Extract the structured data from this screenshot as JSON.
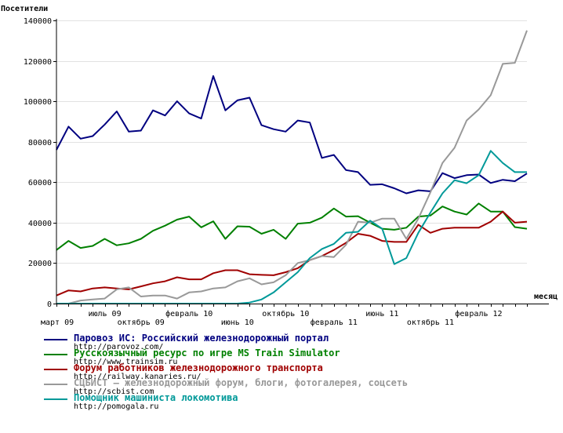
{
  "chart_data": {
    "type": "line",
    "ylabel": "Посетители",
    "xlabel": "месяц",
    "ylim": [
      0,
      140000
    ],
    "yticks": [
      0,
      20000,
      40000,
      60000,
      80000,
      100000,
      120000,
      140000
    ],
    "x_tick_labels": [
      {
        "label": "март 09",
        "index": 0,
        "row": 2
      },
      {
        "label": "июль 09",
        "index": 4,
        "row": 1
      },
      {
        "label": "октябрь 09",
        "index": 7,
        "row": 2
      },
      {
        "label": "февраль 10",
        "index": 11,
        "row": 1
      },
      {
        "label": "июнь 10",
        "index": 15,
        "row": 2
      },
      {
        "label": "октябрь 10",
        "index": 19,
        "row": 1
      },
      {
        "label": "февраль 11",
        "index": 23,
        "row": 2
      },
      {
        "label": "июнь 11",
        "index": 27,
        "row": 1
      },
      {
        "label": "октябрь 11",
        "index": 31,
        "row": 2
      },
      {
        "label": "февраль 12",
        "index": 35,
        "row": 1
      }
    ],
    "n_points": 40,
    "series": [
      {
        "name": "Паровоз ИС: Российский железнодорожный портал",
        "url": "http://parovoz.com/",
        "color": "#000080",
        "values": [
          76000,
          87500,
          81500,
          82800,
          88500,
          95000,
          85000,
          85500,
          95500,
          93000,
          100000,
          94000,
          91500,
          112500,
          95500,
          100500,
          101800,
          88200,
          86200,
          85000,
          90500,
          89500,
          72000,
          73500,
          66000,
          65000,
          58700,
          59000,
          57000,
          54500,
          56000,
          55500,
          64500,
          62000,
          63500,
          63800,
          59600,
          61200,
          60500,
          64300
        ]
      },
      {
        "name": "Русскоязычный ресурс по игре MS Train Simulator",
        "url": "http://www.trainsim.ru",
        "color": "#008000",
        "values": [
          26500,
          31000,
          27500,
          28500,
          32000,
          28800,
          29800,
          32000,
          36000,
          38500,
          41500,
          43000,
          37700,
          40700,
          32000,
          38200,
          38000,
          34500,
          36500,
          32000,
          39500,
          40000,
          42500,
          47000,
          43000,
          43200,
          40000,
          37000,
          36500,
          37500,
          43000,
          43500,
          48000,
          45500,
          44000,
          49500,
          45500,
          45500,
          37800,
          37000
        ]
      },
      {
        "name": "Форум работников железнодорожного транспорта",
        "url": "http://railway.kanaries.ru/",
        "color": "#a00000",
        "values": [
          4000,
          6500,
          6000,
          7500,
          8000,
          7500,
          7000,
          8500,
          10000,
          11000,
          13000,
          12000,
          12000,
          15000,
          16500,
          16500,
          14500,
          14200,
          14000,
          15500,
          17500,
          21500,
          23500,
          26500,
          30000,
          34500,
          33500,
          31000,
          30500,
          30500,
          39000,
          35000,
          37000,
          37500,
          37500,
          37500,
          40500,
          45500,
          40000,
          40500
        ]
      },
      {
        "name": "СЦБИСТ – железнодорожный форум, блоги, фотогалерея, соцсеть",
        "url": "http://scbist.com",
        "color": "#999999",
        "values": [
          0,
          0,
          1500,
          2000,
          2500,
          7000,
          8000,
          3500,
          4000,
          4000,
          2500,
          5500,
          6000,
          7500,
          8000,
          11000,
          12500,
          9500,
          10500,
          14000,
          20000,
          21500,
          23500,
          23000,
          29000,
          40500,
          40000,
          42000,
          42000,
          32000,
          42000,
          55000,
          69500,
          77000,
          90500,
          96000,
          103000,
          118500,
          119000,
          135000
        ]
      },
      {
        "name": "Помощник машиниста локомотива",
        "url": "http://pomogala.ru",
        "color": "#009999",
        "values": [
          0,
          0,
          0,
          0,
          0,
          0,
          0,
          0,
          0,
          0,
          0,
          0,
          0,
          0,
          0,
          0,
          500,
          2000,
          5500,
          10500,
          15500,
          22500,
          27000,
          29500,
          35000,
          35500,
          41000,
          37000,
          19500,
          22500,
          35000,
          45000,
          54500,
          61000,
          59500,
          63500,
          75500,
          69500,
          65000,
          65000
        ]
      }
    ]
  }
}
